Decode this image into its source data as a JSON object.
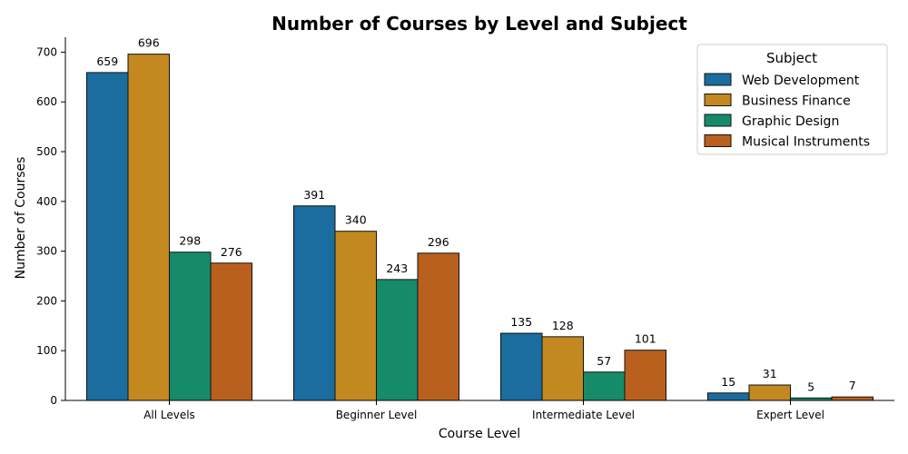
{
  "chart_data": {
    "type": "bar",
    "title": "Number of Courses by Level and Subject",
    "xlabel": "Course Level",
    "ylabel": "Number of Courses",
    "categories": [
      "All Levels",
      "Beginner Level",
      "Intermediate Level",
      "Expert Level"
    ],
    "series": [
      {
        "name": "Web Development",
        "color": "#1a6d9e",
        "values": [
          659,
          391,
          135,
          15
        ]
      },
      {
        "name": "Business Finance",
        "color": "#c38920",
        "values": [
          696,
          340,
          128,
          31
        ]
      },
      {
        "name": "Graphic Design",
        "color": "#168b6a",
        "values": [
          298,
          243,
          57,
          5
        ]
      },
      {
        "name": "Musical Instruments",
        "color": "#b9601f",
        "values": [
          276,
          296,
          101,
          7
        ]
      }
    ],
    "ylim": [
      0,
      730
    ],
    "yticks": [
      0,
      100,
      200,
      300,
      400,
      500,
      600,
      700
    ],
    "legend": {
      "title": "Subject",
      "placement": "top-right"
    },
    "grid": false
  }
}
